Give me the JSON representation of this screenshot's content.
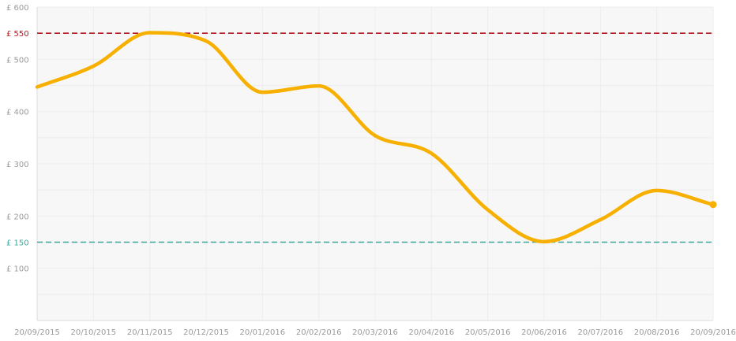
{
  "chart_data": {
    "type": "line",
    "title": "",
    "xlabel": "",
    "ylabel": "",
    "currency_prefix": "£",
    "ylim": [
      0,
      600
    ],
    "grid": true,
    "legend": "none",
    "x_ticks": [
      "20/09/2015",
      "20/10/2015",
      "20/11/2015",
      "20/12/2015",
      "20/01/2016",
      "20/02/2016",
      "20/03/2016",
      "20/04/2016",
      "20/05/2016",
      "20/06/2016",
      "20/07/2016",
      "20/08/2016",
      "20/09/2016"
    ],
    "y_ticks": [
      {
        "value": 100,
        "label": "£ 100"
      },
      {
        "value": 200,
        "label": "£ 200"
      },
      {
        "value": 300,
        "label": "£ 300"
      },
      {
        "value": 400,
        "label": "£ 400"
      },
      {
        "value": 500,
        "label": "£ 500"
      },
      {
        "value": 600,
        "label": "£ 600"
      }
    ],
    "reference_lines": [
      {
        "value": 550,
        "label": "£ 550",
        "color": "#b0171f"
      },
      {
        "value": 150,
        "label": "£ 150",
        "color": "#3aa79b"
      }
    ],
    "series": [
      {
        "color": "#f7b000",
        "points": [
          {
            "x": "20/09/2015",
            "y": 447
          },
          {
            "x": "20/10/2015",
            "y": 487
          },
          {
            "x": "20/11/2015",
            "y": 551
          },
          {
            "x": "20/12/2015",
            "y": 535
          },
          {
            "x": "20/01/2016",
            "y": 437
          },
          {
            "x": "20/02/2016",
            "y": 449
          },
          {
            "x": "20/03/2016",
            "y": 354
          },
          {
            "x": "20/04/2016",
            "y": 320
          },
          {
            "x": "20/05/2016",
            "y": 212
          },
          {
            "x": "20/06/2016",
            "y": 151
          },
          {
            "x": "20/07/2016",
            "y": 193
          },
          {
            "x": "20/08/2016",
            "y": 249
          },
          {
            "x": "20/09/2016",
            "y": 222
          }
        ]
      }
    ]
  }
}
